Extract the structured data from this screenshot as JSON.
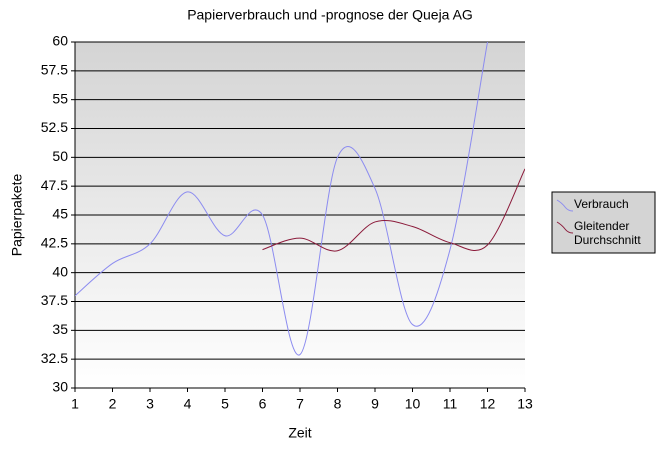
{
  "chart_data": {
    "type": "line",
    "title": "Papierverbrauch und -prognose der Queja AG",
    "x_label": "Zeit",
    "y_label": "Papierpakete",
    "x": [
      1,
      2,
      3,
      4,
      5,
      6,
      7,
      8,
      9,
      10,
      11,
      12,
      13
    ],
    "series": [
      {
        "name": "Verbrauch",
        "color": "#8c8cf0",
        "values": [
          38,
          40.8,
          42.5,
          47,
          43.2,
          45,
          32.9,
          50,
          47.3,
          35.5,
          42,
          60,
          null
        ]
      },
      {
        "name": "Gleitender Durchschnitt",
        "color": "#8b1a3a",
        "values": [
          null,
          null,
          null,
          null,
          null,
          42,
          43,
          41.9,
          44.4,
          44,
          42.6,
          42.4,
          49
        ]
      }
    ],
    "xlim": [
      1,
      13
    ],
    "xticks": [
      1,
      2,
      3,
      4,
      5,
      6,
      7,
      8,
      9,
      10,
      11,
      12,
      13
    ],
    "ylim": [
      30,
      60
    ],
    "yticks": [
      30,
      32.5,
      35,
      37.5,
      40,
      42.5,
      45,
      47.5,
      50,
      52.5,
      55,
      57.5,
      60
    ],
    "grid": true,
    "legend": "right"
  }
}
